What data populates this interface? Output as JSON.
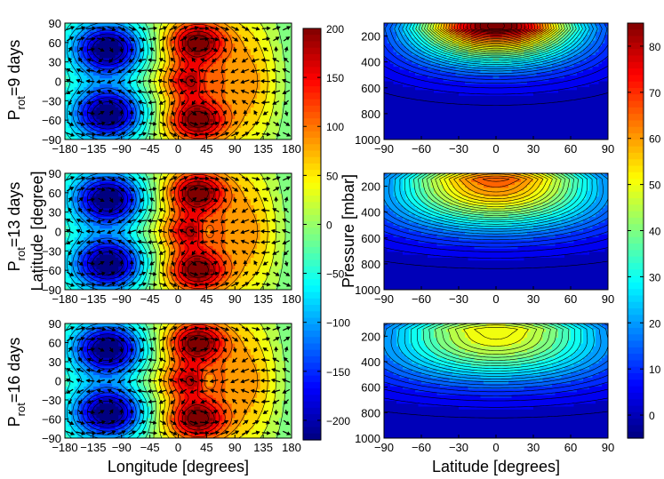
{
  "chart_data": {
    "type": "heatmap",
    "rows": [
      {
        "label_main": "P",
        "label_sub": "rot",
        "label_rest": "=9 days"
      },
      {
        "label_main": "P",
        "label_sub": "rot",
        "label_rest": "=13 days"
      },
      {
        "label_main": "P",
        "label_sub": "rot",
        "label_rest": "=16 days"
      }
    ],
    "left_panels": {
      "xlabel": "Longitude [degrees]",
      "ylabel": "Latitude [degree]",
      "xticks": [
        "−180",
        "−135",
        "−90",
        "−45",
        "0",
        "45",
        "90",
        "135",
        "180"
      ],
      "yticks": [
        "90",
        "60",
        "30",
        "0",
        "−30",
        "−60",
        "−90"
      ],
      "xlim": [
        -180,
        180
      ],
      "ylim": [
        -90,
        90
      ],
      "colorbar": {
        "ticks": [
          "200",
          "150",
          "100",
          "50",
          "0",
          "−50",
          "−100",
          "−150",
          "−200"
        ],
        "range": [
          -220,
          200
        ]
      },
      "cold_centers": [
        [
          -110,
          50
        ],
        [
          -110,
          -50
        ]
      ],
      "hot_centers": [
        [
          30,
          60
        ],
        [
          30,
          -60
        ],
        [
          20,
          0
        ]
      ],
      "warm_eye": [
        45,
        0
      ],
      "eye_strength": [
        0.25,
        0.35,
        0.4
      ]
    },
    "right_panels": {
      "xlabel": "Latitude [degrees]",
      "ylabel": "Pressure [mbar]",
      "xticks": [
        "−90",
        "−60",
        "−30",
        "0",
        "30",
        "60",
        "90"
      ],
      "yticks": [
        "200",
        "400",
        "600",
        "800",
        "1000"
      ],
      "xlim": [
        -90,
        90
      ],
      "ylim": [
        1000,
        100
      ],
      "colorbar": {
        "ticks": [
          "80",
          "70",
          "60",
          "50",
          "40",
          "30",
          "20",
          "10",
          "0"
        ],
        "range": [
          -5,
          85
        ]
      },
      "jet_peak": [
        90,
        80,
        68
      ],
      "jet_pressure": [
        120,
        300,
        330
      ],
      "jet_width": [
        45,
        55,
        60
      ]
    },
    "colormap": "jet",
    "grid": false
  }
}
